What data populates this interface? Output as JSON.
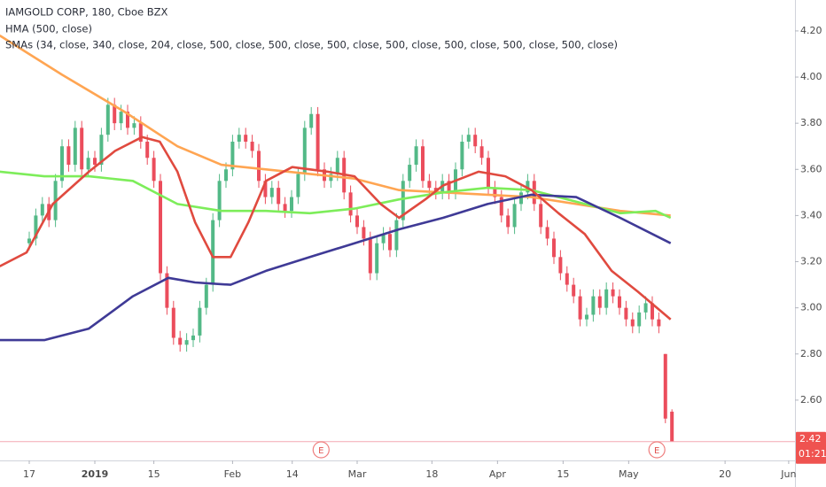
{
  "chart_data": {
    "type": "candlestick",
    "title": "IAMGOLD CORP, 180, Cboe BZX",
    "subtitles": [
      "HMA (500, close)",
      "SMAs (34, close, 340, close, 204, close, 500, close, 500, close, 500, close, 500, close, 500, close, 500, close, 500, close)"
    ],
    "up_color": "#53b987",
    "down_color": "#eb4d5c",
    "x": [
      0,
      1,
      2,
      3,
      4,
      5,
      6,
      7,
      8,
      9,
      10,
      11,
      12,
      13,
      14,
      15,
      16,
      17,
      18,
      19,
      20,
      21,
      22,
      23,
      24,
      25,
      26,
      27,
      28,
      29,
      30,
      31,
      32,
      33,
      34,
      35,
      36,
      37,
      38,
      39,
      40,
      41,
      42,
      43,
      44,
      45,
      46,
      47,
      48,
      49,
      50,
      51,
      52,
      53,
      54,
      55,
      56,
      57,
      58,
      59,
      60,
      61,
      62,
      63,
      64,
      65,
      66,
      67,
      68,
      69,
      70,
      71,
      72,
      73,
      74,
      75,
      76,
      77,
      78,
      79,
      80,
      81,
      82,
      83,
      84,
      85,
      86,
      87,
      88,
      89,
      90,
      91,
      92,
      93,
      94,
      95,
      96,
      97,
      98
    ],
    "open": [
      3.28,
      3.3,
      3.4,
      3.45,
      3.38,
      3.55,
      3.7,
      3.62,
      3.78,
      3.6,
      3.65,
      3.62,
      3.75,
      3.88,
      3.8,
      3.85,
      3.78,
      3.8,
      3.72,
      3.65,
      3.55,
      3.15,
      3.0,
      2.87,
      2.84,
      2.86,
      2.88,
      3.0,
      3.1,
      3.38,
      3.55,
      3.6,
      3.72,
      3.75,
      3.72,
      3.68,
      3.55,
      3.48,
      3.52,
      3.45,
      3.42,
      3.48,
      3.58,
      3.78,
      3.84,
      3.6,
      3.55,
      3.58,
      3.65,
      3.5,
      3.4,
      3.35,
      3.3,
      3.15,
      3.28,
      3.32,
      3.25,
      3.38,
      3.55,
      3.62,
      3.7,
      3.55,
      3.52,
      3.5,
      3.55,
      3.5,
      3.6,
      3.72,
      3.75,
      3.7,
      3.65,
      3.52,
      3.48,
      3.4,
      3.35,
      3.45,
      3.5,
      3.55,
      3.45,
      3.35,
      3.3,
      3.22,
      3.15,
      3.1,
      3.05,
      2.95,
      2.97,
      3.05,
      3.0,
      3.08,
      3.05,
      3.0,
      2.95,
      2.92,
      2.98,
      3.02,
      2.95,
      2.8,
      2.55
    ],
    "high": [
      3.33,
      3.43,
      3.48,
      3.48,
      3.58,
      3.73,
      3.73,
      3.81,
      3.81,
      3.68,
      3.68,
      3.78,
      3.91,
      3.91,
      3.88,
      3.88,
      3.83,
      3.83,
      3.75,
      3.68,
      3.58,
      3.18,
      3.03,
      2.9,
      2.89,
      2.91,
      3.03,
      3.13,
      3.41,
      3.58,
      3.63,
      3.75,
      3.78,
      3.78,
      3.75,
      3.71,
      3.58,
      3.55,
      3.55,
      3.48,
      3.51,
      3.61,
      3.81,
      3.87,
      3.87,
      3.63,
      3.61,
      3.68,
      3.68,
      3.53,
      3.43,
      3.38,
      3.33,
      3.31,
      3.35,
      3.35,
      3.41,
      3.58,
      3.65,
      3.73,
      3.73,
      3.58,
      3.55,
      3.58,
      3.58,
      3.63,
      3.75,
      3.78,
      3.78,
      3.73,
      3.68,
      3.55,
      3.51,
      3.43,
      3.48,
      3.53,
      3.58,
      3.58,
      3.48,
      3.38,
      3.33,
      3.25,
      3.18,
      3.13,
      3.08,
      3.0,
      3.08,
      3.08,
      3.11,
      3.11,
      3.08,
      3.03,
      2.98,
      3.01,
      3.05,
      3.05,
      2.98,
      2.8,
      2.56
    ],
    "low": [
      3.25,
      3.27,
      3.37,
      3.35,
      3.35,
      3.52,
      3.59,
      3.59,
      3.57,
      3.57,
      3.59,
      3.59,
      3.72,
      3.77,
      3.77,
      3.75,
      3.75,
      3.69,
      3.62,
      3.52,
      3.12,
      2.97,
      2.84,
      2.81,
      2.81,
      2.83,
      2.85,
      2.97,
      3.07,
      3.35,
      3.52,
      3.57,
      3.69,
      3.69,
      3.65,
      3.52,
      3.45,
      3.45,
      3.42,
      3.39,
      3.39,
      3.45,
      3.55,
      3.75,
      3.57,
      3.52,
      3.52,
      3.55,
      3.47,
      3.37,
      3.32,
      3.27,
      3.12,
      3.12,
      3.25,
      3.22,
      3.22,
      3.35,
      3.52,
      3.59,
      3.52,
      3.49,
      3.47,
      3.47,
      3.47,
      3.47,
      3.57,
      3.69,
      3.67,
      3.62,
      3.49,
      3.45,
      3.37,
      3.32,
      3.32,
      3.42,
      3.47,
      3.42,
      3.32,
      3.27,
      3.19,
      3.12,
      3.07,
      3.02,
      2.92,
      2.92,
      2.94,
      2.97,
      2.97,
      3.02,
      2.97,
      2.92,
      2.89,
      2.89,
      2.95,
      2.92,
      2.89,
      2.5,
      2.42
    ],
    "close": [
      3.3,
      3.4,
      3.45,
      3.38,
      3.55,
      3.7,
      3.62,
      3.78,
      3.6,
      3.65,
      3.62,
      3.75,
      3.88,
      3.8,
      3.85,
      3.78,
      3.8,
      3.72,
      3.65,
      3.55,
      3.15,
      3.0,
      2.87,
      2.84,
      2.86,
      2.88,
      3.0,
      3.1,
      3.38,
      3.55,
      3.6,
      3.72,
      3.75,
      3.72,
      3.68,
      3.55,
      3.48,
      3.52,
      3.45,
      3.42,
      3.48,
      3.58,
      3.78,
      3.84,
      3.6,
      3.55,
      3.58,
      3.65,
      3.5,
      3.4,
      3.35,
      3.3,
      3.15,
      3.28,
      3.32,
      3.25,
      3.38,
      3.55,
      3.62,
      3.7,
      3.55,
      3.52,
      3.5,
      3.55,
      3.5,
      3.6,
      3.72,
      3.75,
      3.7,
      3.65,
      3.52,
      3.48,
      3.4,
      3.35,
      3.45,
      3.5,
      3.55,
      3.45,
      3.35,
      3.3,
      3.22,
      3.15,
      3.1,
      3.05,
      2.95,
      2.97,
      3.05,
      3.0,
      3.08,
      3.05,
      3.0,
      2.95,
      2.92,
      2.98,
      3.02,
      2.95,
      2.92,
      2.52,
      2.42
    ],
    "series": [
      {
        "color": "#ffa552",
        "x": [
          -4.5,
          5.0,
          14.5,
          22.6,
          29.3,
          36.1,
          49.6,
          56.4,
          63.1,
          76.6,
          83.4,
          90.1,
          97.8
        ],
        "values": [
          4.18,
          4.01,
          3.85,
          3.7,
          3.62,
          3.6,
          3.56,
          3.51,
          3.5,
          3.48,
          3.45,
          3.42,
          3.4
        ]
      },
      {
        "color": "#7ded5a",
        "x": [
          -4.5,
          2.3,
          9.1,
          15.8,
          22.6,
          29.3,
          36.1,
          42.8,
          49.6,
          56.4,
          63.1,
          69.9,
          76.6,
          83.4,
          90.1,
          95.5,
          97.8
        ],
        "values": [
          3.59,
          3.57,
          3.57,
          3.55,
          3.45,
          3.42,
          3.42,
          3.41,
          3.43,
          3.47,
          3.5,
          3.52,
          3.51,
          3.46,
          3.41,
          3.42,
          3.39
        ]
      },
      {
        "color": "#3f3a96",
        "x": [
          -4.5,
          2.3,
          9.1,
          15.8,
          21.2,
          25.3,
          30.7,
          36.1,
          42.8,
          49.6,
          56.4,
          63.1,
          69.9,
          76.6,
          83.4,
          90.1,
          97.8
        ],
        "values": [
          2.86,
          2.86,
          2.91,
          3.05,
          3.13,
          3.11,
          3.1,
          3.16,
          3.22,
          3.28,
          3.34,
          3.39,
          3.45,
          3.49,
          3.48,
          3.39,
          3.28
        ]
      },
      {
        "color": "#e04a3f",
        "x": [
          -4.5,
          -0.4,
          3.6,
          9.1,
          13.1,
          17.2,
          19.9,
          22.6,
          25.3,
          28.0,
          30.7,
          33.4,
          36.1,
          40.1,
          45.5,
          49.6,
          53.6,
          56.4,
          60.4,
          63.1,
          68.5,
          72.6,
          76.6,
          80.7,
          84.7,
          88.8,
          92.8,
          97.8
        ],
        "values": [
          3.18,
          3.24,
          3.45,
          3.59,
          3.68,
          3.74,
          3.72,
          3.59,
          3.37,
          3.22,
          3.22,
          3.37,
          3.55,
          3.61,
          3.59,
          3.57,
          3.45,
          3.39,
          3.47,
          3.53,
          3.59,
          3.57,
          3.51,
          3.41,
          3.32,
          3.16,
          3.07,
          2.95
        ]
      }
    ],
    "xlim": [
      -4.46,
      116.76
    ],
    "ylim": [
      2.377,
      4.334
    ],
    "xticks": [
      {
        "value": 0,
        "label": "17"
      },
      {
        "value": 10,
        "label": "2019"
      },
      {
        "value": 19,
        "label": "15"
      },
      {
        "value": 31,
        "label": "Feb"
      },
      {
        "value": 40.1,
        "label": "14"
      },
      {
        "value": 50,
        "label": "Mar"
      },
      {
        "value": 61.4,
        "label": "18"
      },
      {
        "value": 71.4,
        "label": "Apr"
      },
      {
        "value": 81.4,
        "label": "15"
      },
      {
        "value": 91.4,
        "label": "May"
      },
      {
        "value": 106.1,
        "label": "20"
      },
      {
        "value": 115.8,
        "label": "Jun"
      }
    ],
    "yticks": [
      {
        "value": 2.6,
        "label": "2.60"
      },
      {
        "value": 2.8,
        "label": "2.80"
      },
      {
        "value": 3.0,
        "label": "3.00"
      },
      {
        "value": 3.2,
        "label": "3.20"
      },
      {
        "value": 3.4,
        "label": "3.40"
      },
      {
        "value": 3.6,
        "label": "3.60"
      },
      {
        "value": 3.8,
        "label": "3.80"
      },
      {
        "value": 4.0,
        "label": "4.00"
      },
      {
        "value": 4.2,
        "label": "4.20"
      }
    ],
    "last_price": {
      "value": 2.42,
      "label": "2.42"
    },
    "countdown": "01:21",
    "events": [
      {
        "x": 44.5,
        "label": "E"
      },
      {
        "x": 95.7,
        "label": "E"
      }
    ]
  }
}
